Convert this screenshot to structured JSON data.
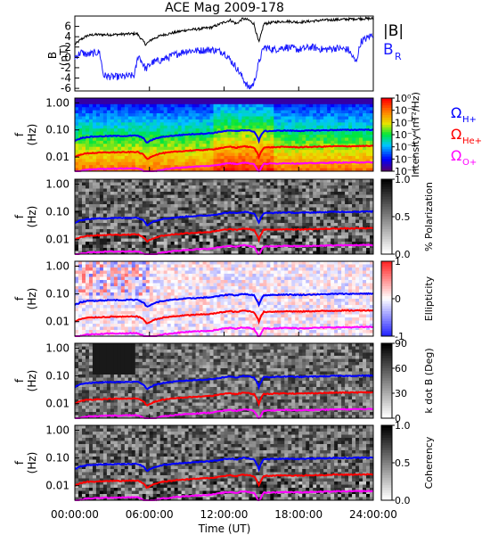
{
  "title": "ACE Mag 2009-178",
  "colors": {
    "B": "#000000",
    "BR": "#1a1aff",
    "H": "#0000ff",
    "He": "#ff0000",
    "O": "#ff00ff"
  },
  "time_axis": {
    "label": "Time (UT)",
    "ticks": [
      "00:00:00",
      "06:00:00",
      "12:00:00",
      "18:00:00",
      "24:00:00"
    ],
    "range_hours": [
      0,
      24
    ]
  },
  "chart_data": [
    {
      "type": "line",
      "title": "ACE Mag 2009-178",
      "ylabel": "B (nT)",
      "ylim": [
        -6.5,
        8
      ],
      "yticks": [
        "6",
        "4",
        "2",
        "0",
        "-2",
        "-4",
        "-6"
      ],
      "legend": [
        {
          "label": "|B|",
          "color": "#000000"
        },
        {
          "label": "B_R",
          "color": "#1a1aff"
        }
      ],
      "series": [
        {
          "name": "|B|",
          "x_hours": [
            0,
            0.5,
            1,
            1.5,
            2,
            3,
            4,
            5,
            5.7,
            6.2,
            7,
            8,
            9,
            10,
            11,
            12,
            12.5,
            13,
            13.5,
            14,
            14.4,
            14.8,
            15.2,
            16,
            17,
            18,
            19,
            20,
            21,
            22,
            23,
            24
          ],
          "values": [
            2.5,
            3.5,
            4.2,
            4.4,
            4.4,
            4.4,
            4.5,
            4.6,
            2.5,
            3.5,
            4.3,
            4.8,
            5.3,
            5.5,
            5.8,
            6.8,
            7.2,
            6.5,
            7.5,
            7.2,
            6.5,
            2.8,
            6.5,
            6.8,
            7,
            6.8,
            7,
            7.2,
            7.3,
            7.4,
            7.5,
            7.5
          ]
        },
        {
          "name": "B_R",
          "x_hours": [
            0,
            0.5,
            1,
            1.5,
            2,
            2.3,
            3,
            4,
            4.8,
            5.1,
            5.7,
            6.2,
            7,
            8,
            9,
            10,
            11,
            12,
            12.5,
            13,
            13.5,
            14,
            14.4,
            14.8,
            15.2,
            16,
            17,
            18,
            19,
            20,
            21,
            22,
            22.6,
            23,
            24
          ],
          "values": [
            0,
            1,
            0.5,
            0.8,
            1,
            -3.5,
            -3.8,
            -3.7,
            -3.5,
            0.5,
            -2.3,
            -1,
            -0.5,
            0.5,
            1.3,
            1.3,
            1.5,
            1,
            -0.5,
            -2,
            -4,
            -6,
            -5,
            -1,
            2,
            1.5,
            2,
            1.5,
            2,
            1.5,
            1.8,
            1.5,
            -1,
            3,
            4.5
          ]
        }
      ]
    },
    {
      "type": "heatmap",
      "ylabel": "f (Hz)",
      "ylim": [
        0.003,
        1.5
      ],
      "yscale": "log",
      "yticks": [
        "1.00",
        "0.10",
        "0.01"
      ],
      "colorbar": {
        "label": "Intensity (nT²/Hz)",
        "ticks": [
          "10⁰",
          "10⁻¹",
          "10⁻²",
          "10⁻³",
          "10⁻⁴",
          "10⁻⁵",
          "10⁻⁶"
        ],
        "colormap": "rainbow"
      },
      "legend": [
        {
          "label": "Ω",
          "sub": "H+",
          "color": "#0000ff"
        },
        {
          "label": "Ω",
          "sub": "He+",
          "color": "#ff0000"
        },
        {
          "label": "Ω",
          "sub": "O+",
          "color": "#ff00ff"
        }
      ]
    },
    {
      "type": "heatmap",
      "ylabel": "f (Hz)",
      "ylim": [
        0.003,
        1.5
      ],
      "yscale": "log",
      "yticks": [
        "1.00",
        "0.10",
        "0.01"
      ],
      "colorbar": {
        "label": "% Polarization",
        "ticks": [
          "1.0",
          "0.5",
          "0.0"
        ],
        "colormap": "gray"
      }
    },
    {
      "type": "heatmap",
      "ylabel": "f (Hz)",
      "ylim": [
        0.003,
        1.5
      ],
      "yscale": "log",
      "yticks": [
        "1.00",
        "0.10",
        "0.01"
      ],
      "colorbar": {
        "label": "Ellipticity",
        "ticks": [
          "1",
          "0",
          "-1"
        ],
        "colormap": "bwr"
      }
    },
    {
      "type": "heatmap",
      "ylabel": "f (Hz)",
      "ylim": [
        0.003,
        1.5
      ],
      "yscale": "log",
      "yticks": [
        "1.00",
        "0.10",
        "0.01"
      ],
      "colorbar": {
        "label": "k dot B (Deg)",
        "ticks": [
          "90",
          "60",
          "30",
          "0"
        ],
        "colormap": "gray"
      }
    },
    {
      "type": "heatmap",
      "ylabel": "f (Hz)",
      "ylim": [
        0.003,
        1.5
      ],
      "yscale": "log",
      "yticks": [
        "1.00",
        "0.10",
        "0.01"
      ],
      "colorbar": {
        "label": "Coherency",
        "ticks": [
          "1.0",
          "0.5",
          "0.0"
        ],
        "colormap": "gray"
      }
    }
  ],
  "gyro_lines": {
    "x_hours": [
      0,
      0.5,
      1,
      2,
      3,
      4,
      5,
      5.5,
      5.8,
      6.3,
      7,
      8,
      9,
      10,
      11,
      12,
      12.5,
      13,
      13.5,
      14,
      14.4,
      14.8,
      15.2,
      16,
      17,
      18,
      19,
      20,
      21,
      22,
      23,
      24
    ],
    "H_plus_hz": [
      0.04,
      0.05,
      0.055,
      0.058,
      0.06,
      0.06,
      0.062,
      0.05,
      0.033,
      0.045,
      0.055,
      0.062,
      0.068,
      0.072,
      0.076,
      0.09,
      0.095,
      0.088,
      0.1,
      0.095,
      0.088,
      0.04,
      0.09,
      0.092,
      0.095,
      0.092,
      0.095,
      0.097,
      0.1,
      0.1,
      0.102,
      0.102
    ]
  }
}
